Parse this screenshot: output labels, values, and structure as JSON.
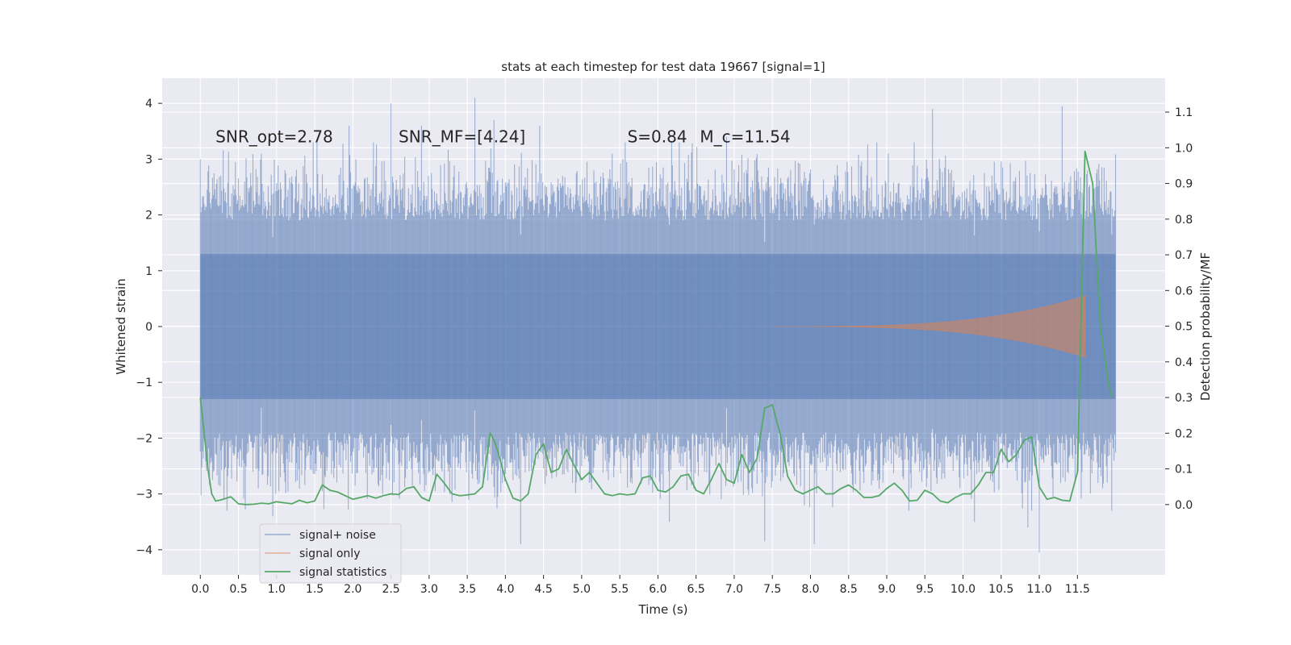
{
  "chart_data": {
    "type": "line",
    "title": "stats at each timestep for test data 19667 [signal=1]",
    "xlabel": "Time (s)",
    "ylabel_left": "Whitened strain",
    "ylabel_right": "Detection probability/MF",
    "xlim": [
      -0.5,
      12.65
    ],
    "ylim_left": [
      -4.45,
      4.45
    ],
    "ylim_right": [
      -0.197,
      1.195
    ],
    "x_ticks": [
      "0.0",
      "0.5",
      "1.0",
      "1.5",
      "2.0",
      "2.5",
      "3.0",
      "3.5",
      "4.0",
      "4.5",
      "5.0",
      "5.5",
      "6.0",
      "6.5",
      "7.0",
      "7.5",
      "8.0",
      "8.5",
      "9.0",
      "9.5",
      "10.0",
      "10.5",
      "11.0",
      "11.5"
    ],
    "y_ticks_left": [
      "4",
      "3",
      "2",
      "1",
      "0",
      "−1",
      "−2",
      "−3",
      "−4"
    ],
    "y_ticks_right": [
      "1.1",
      "1.0",
      "0.9",
      "0.8",
      "0.7",
      "0.6",
      "0.5",
      "0.4",
      "0.3",
      "0.2",
      "0.1",
      "0.0"
    ],
    "grid": true,
    "legend_position": "lower-left",
    "annotations": [
      {
        "text": "SNR_opt=2.78",
        "x": 0.2,
        "y": 3.3
      },
      {
        "text": "SNR_MF=[4.24]",
        "x": 2.6,
        "y": 3.3
      },
      {
        "text": "S=0.84",
        "x": 5.6,
        "y": 3.3
      },
      {
        "text": "M_c=11.54",
        "x": 6.55,
        "y": 3.3
      }
    ],
    "series": [
      {
        "name": "signal+ noise",
        "color": "#4c72b0",
        "axis": "left",
        "x_range": [
          0,
          12
        ],
        "envelope_upper_typical": 2.5,
        "envelope_lower_typical": -2.5,
        "extremes": [
          {
            "x": 0.0,
            "y": 3.0
          },
          {
            "x": 0.1,
            "y": -2.5
          },
          {
            "x": 0.8,
            "y": 3.1
          },
          {
            "x": 0.95,
            "y": -3.4
          },
          {
            "x": 1.95,
            "y": 3.6
          },
          {
            "x": 2.5,
            "y": 4.0
          },
          {
            "x": 2.9,
            "y": 3.6
          },
          {
            "x": 3.6,
            "y": 4.1
          },
          {
            "x": 3.85,
            "y": 3.7
          },
          {
            "x": 4.2,
            "y": -3.9
          },
          {
            "x": 4.45,
            "y": 3.6
          },
          {
            "x": 5.4,
            "y": 3.1
          },
          {
            "x": 6.15,
            "y": -3.5
          },
          {
            "x": 6.9,
            "y": 3.4
          },
          {
            "x": 7.4,
            "y": -3.85
          },
          {
            "x": 8.05,
            "y": -3.9
          },
          {
            "x": 9.6,
            "y": 3.9
          },
          {
            "x": 10.15,
            "y": -3.5
          },
          {
            "x": 10.85,
            "y": -3.6
          },
          {
            "x": 11.0,
            "y": -4.05
          },
          {
            "x": 11.3,
            "y": 3.95
          },
          {
            "x": 11.95,
            "y": -3.3
          }
        ]
      },
      {
        "name": "signal only",
        "color": "#dd8452",
        "axis": "left",
        "chirp_start": 7.5,
        "chirp_end": 11.6,
        "peak_amplitude": 0.55
      },
      {
        "name": "signal statistics",
        "color": "#55a868",
        "axis": "right",
        "x": [
          0.0,
          0.05,
          0.1,
          0.15,
          0.2,
          0.25,
          0.3,
          0.4,
          0.5,
          0.6,
          0.7,
          0.8,
          0.9,
          1.0,
          1.1,
          1.2,
          1.3,
          1.4,
          1.5,
          1.6,
          1.7,
          1.8,
          1.9,
          2.0,
          2.1,
          2.2,
          2.3,
          2.4,
          2.5,
          2.6,
          2.7,
          2.8,
          2.9,
          3.0,
          3.1,
          3.2,
          3.3,
          3.4,
          3.5,
          3.6,
          3.7,
          3.8,
          3.85,
          3.9,
          4.0,
          4.1,
          4.2,
          4.3,
          4.4,
          4.5,
          4.6,
          4.7,
          4.8,
          4.9,
          5.0,
          5.1,
          5.2,
          5.3,
          5.4,
          5.5,
          5.6,
          5.7,
          5.8,
          5.9,
          6.0,
          6.1,
          6.2,
          6.3,
          6.4,
          6.5,
          6.6,
          6.7,
          6.8,
          6.9,
          7.0,
          7.1,
          7.2,
          7.3,
          7.4,
          7.5,
          7.6,
          7.7,
          7.8,
          7.9,
          8.0,
          8.1,
          8.2,
          8.3,
          8.4,
          8.5,
          8.6,
          8.7,
          8.8,
          8.9,
          9.0,
          9.1,
          9.2,
          9.3,
          9.4,
          9.5,
          9.6,
          9.7,
          9.8,
          9.9,
          10.0,
          10.1,
          10.2,
          10.3,
          10.4,
          10.5,
          10.6,
          10.7,
          10.8,
          10.9,
          11.0,
          11.1,
          11.2,
          11.3,
          11.4,
          11.5,
          11.6,
          11.7,
          11.8,
          11.9,
          11.95
        ],
        "values": [
          0.3,
          0.2,
          0.1,
          0.03,
          0.01,
          0.012,
          0.015,
          0.022,
          0.002,
          0.0,
          0.001,
          0.004,
          0.002,
          0.008,
          0.005,
          0.002,
          0.012,
          0.005,
          0.01,
          0.055,
          0.04,
          0.035,
          0.025,
          0.015,
          0.02,
          0.025,
          0.018,
          0.025,
          0.03,
          0.028,
          0.045,
          0.05,
          0.02,
          0.01,
          0.085,
          0.06,
          0.03,
          0.025,
          0.027,
          0.03,
          0.05,
          0.2,
          0.18,
          0.15,
          0.07,
          0.018,
          0.01,
          0.03,
          0.14,
          0.17,
          0.09,
          0.1,
          0.155,
          0.11,
          0.07,
          0.09,
          0.06,
          0.03,
          0.025,
          0.03,
          0.027,
          0.03,
          0.075,
          0.08,
          0.04,
          0.035,
          0.05,
          0.08,
          0.085,
          0.04,
          0.03,
          0.07,
          0.115,
          0.07,
          0.06,
          0.14,
          0.09,
          0.13,
          0.27,
          0.28,
          0.2,
          0.08,
          0.04,
          0.03,
          0.04,
          0.05,
          0.03,
          0.03,
          0.045,
          0.055,
          0.04,
          0.02,
          0.02,
          0.025,
          0.045,
          0.06,
          0.04,
          0.01,
          0.012,
          0.04,
          0.03,
          0.01,
          0.005,
          0.02,
          0.03,
          0.03,
          0.055,
          0.09,
          0.09,
          0.155,
          0.12,
          0.14,
          0.18,
          0.19,
          0.05,
          0.015,
          0.02,
          0.012,
          0.01,
          0.09,
          0.99,
          0.9,
          0.5,
          0.35,
          0.3
        ]
      }
    ]
  }
}
